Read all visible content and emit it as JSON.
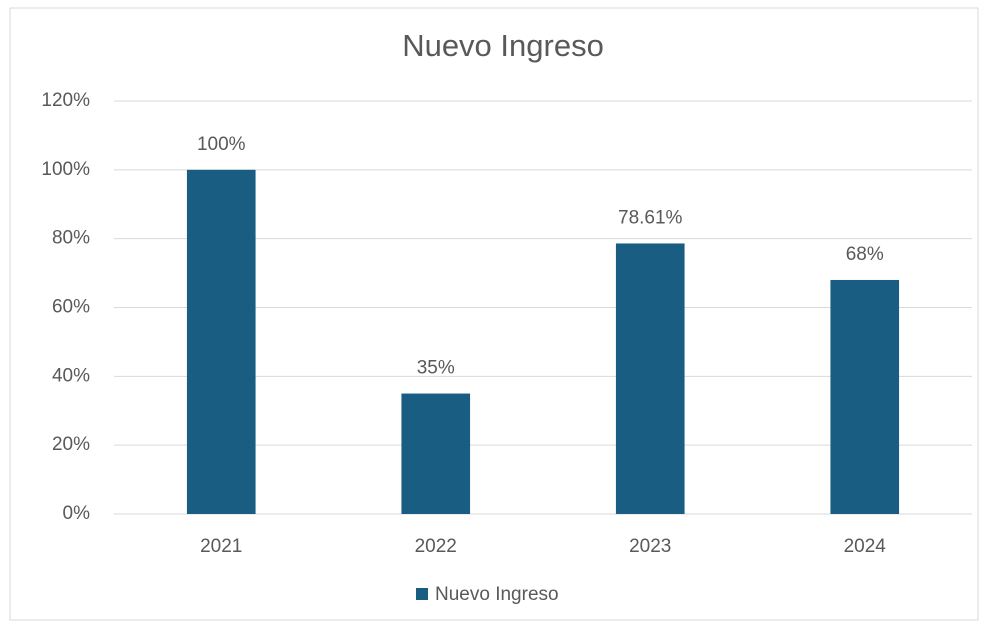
{
  "chart_data": {
    "type": "bar",
    "title": "Nuevo Ingreso",
    "categories": [
      "2021",
      "2022",
      "2023",
      "2024"
    ],
    "series": [
      {
        "name": "Nuevo Ingreso",
        "color": "#195e82",
        "values": [
          100,
          35,
          78.61,
          68
        ],
        "value_labels": [
          "100%",
          "35%",
          "78.61%",
          "68%"
        ]
      }
    ],
    "ylim": [
      0,
      120
    ],
    "yticks": [
      {
        "value": 0,
        "label": "0%"
      },
      {
        "value": 20,
        "label": "20%"
      },
      {
        "value": 40,
        "label": "40%"
      },
      {
        "value": 60,
        "label": "60%"
      },
      {
        "value": 80,
        "label": "80%"
      },
      {
        "value": 100,
        "label": "100%"
      },
      {
        "value": 120,
        "label": "120%"
      }
    ],
    "grid": true,
    "legend": "bottom"
  }
}
